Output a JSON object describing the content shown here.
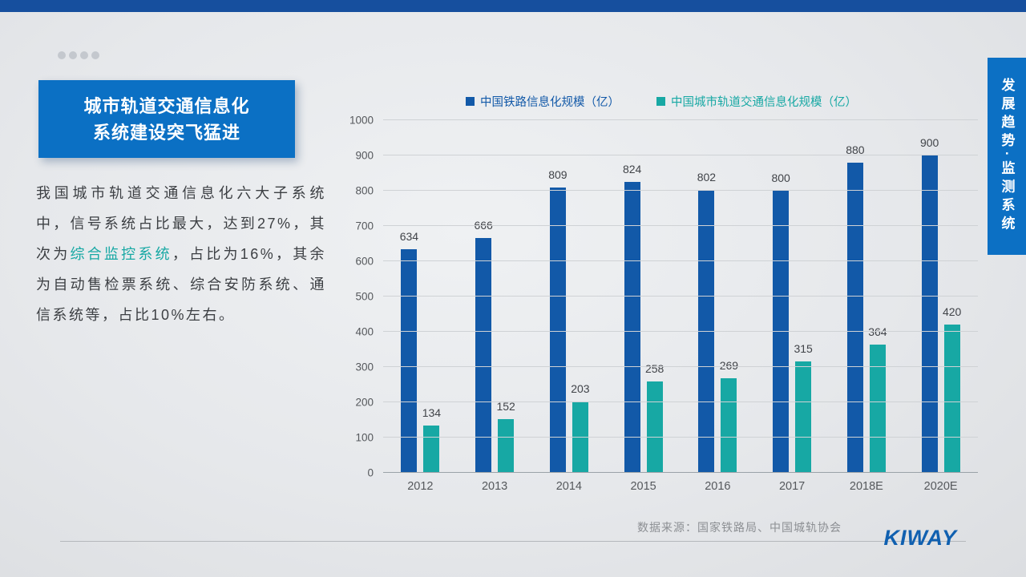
{
  "slide": {
    "title_line1": "城市轨道交通信息化",
    "title_line2": "系统建设突飞猛进",
    "body": {
      "part1": "我国城市轨道交通信息化六大子系统中，信号系统占比最大，达到27%，其次为",
      "highlight": "综合监控系统",
      "part2": "，占比为16%，其余为自动售检票系统、综合安防系统、通信系统等，占比10%左右。"
    },
    "sidebar_label": "发展趋势·监测系统",
    "source": "数据来源：国家铁路局、中国城轨协会",
    "logo": "KIWAY"
  },
  "colors": {
    "series1": "#1259a8",
    "series2": "#17a8a4",
    "accent_blue": "#0b70c4"
  },
  "chart_data": {
    "type": "bar",
    "categories": [
      "2012",
      "2013",
      "2014",
      "2015",
      "2016",
      "2017",
      "2018E",
      "2020E"
    ],
    "series": [
      {
        "name": "中国铁路信息化规模（亿）",
        "color": "#1259a8",
        "values": [
          634,
          666,
          809,
          824,
          802,
          800,
          880,
          900
        ]
      },
      {
        "name": "中国城市轨道交通信息化规模（亿）",
        "color": "#17a8a4",
        "values": [
          134,
          152,
          203,
          258,
          269,
          315,
          364,
          420
        ]
      }
    ],
    "ylim": [
      0,
      1000
    ],
    "ytick_step": 100,
    "grid": true,
    "legend_position": "top"
  }
}
